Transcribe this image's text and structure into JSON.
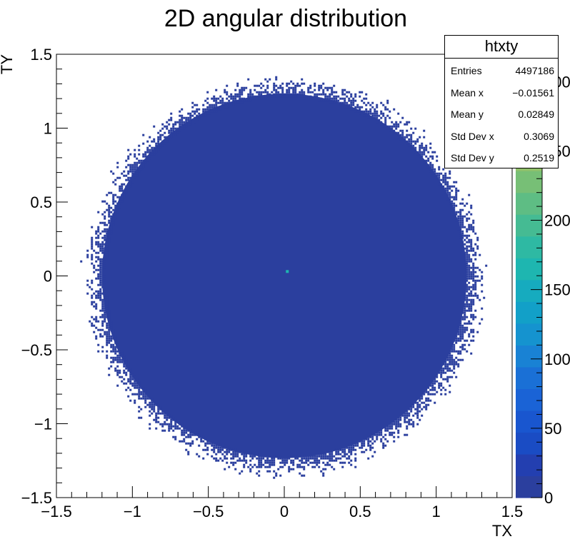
{
  "chart_data": {
    "type": "heatmap",
    "title": "2D angular distribution",
    "xlabel": "TX",
    "ylabel": "TY",
    "xlim": [
      -1.5,
      1.5
    ],
    "ylim": [
      -1.5,
      1.5
    ],
    "x_ticks": [
      "−1.5",
      "−1",
      "−0.5",
      "0",
      "0.5",
      "1",
      "1.5"
    ],
    "y_ticks": [
      "−1.5",
      "−1",
      "−0.5",
      "0",
      "0.5",
      "1",
      "1.5"
    ],
    "x_tick_values": [
      -1.5,
      -1,
      -0.5,
      0,
      0.5,
      1,
      1.5
    ],
    "y_tick_values": [
      -1.5,
      -1,
      -0.5,
      0,
      0.5,
      1,
      1.5
    ],
    "colorbar": {
      "ticks": [
        "0",
        "50",
        "100",
        "150",
        "200",
        "250",
        "300"
      ],
      "tick_values": [
        0,
        50,
        100,
        150,
        200,
        250,
        300
      ],
      "range": [
        0,
        330
      ],
      "colors": [
        "#2b3f9e",
        "#233fb0",
        "#1a4cc4",
        "#1956cf",
        "#1a63d6",
        "#1a70d6",
        "#1982d4",
        "#1593cf",
        "#12a0c8",
        "#16abbf",
        "#1eb6b0",
        "#2eb9a3",
        "#45bb93",
        "#5ebd84",
        "#77bf76",
        "#90c16a",
        "#aac061",
        "#c2bd57",
        "#d6b752",
        "#e7b153",
        "#f0ab4f"
      ]
    },
    "distribution": {
      "shape": "filled disc",
      "center": [
        0.0,
        0.0
      ],
      "core_radius": 1.2,
      "edge_radius": 1.33,
      "background_bin_count_level": 1,
      "hotspot": {
        "x": 0.02,
        "y": 0.03,
        "count_level": 170
      }
    }
  },
  "stats": {
    "name": "htxty",
    "rows": [
      {
        "key": "Entries",
        "value": "4497186"
      },
      {
        "key": "Mean x",
        "value": "−0.01561"
      },
      {
        "key": "Mean y",
        "value": "0.02849"
      },
      {
        "key": "Std Dev x",
        "value": "0.3069"
      },
      {
        "key": "Std Dev y",
        "value": "0.2519"
      }
    ]
  }
}
